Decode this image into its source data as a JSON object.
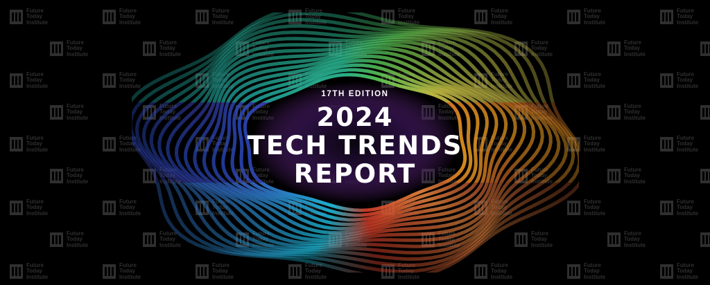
{
  "banner": {
    "edition": "17TH EDITION",
    "year": "2024",
    "title_line1": "TECH TRENDS",
    "title_line2": "REPORT"
  },
  "watermark": {
    "brand_text": "Future\nToday\nInstitute",
    "logo_icon": "fti-logo-icon"
  },
  "colors": {
    "background": "#000000",
    "watermark": "#8a8a8a",
    "title": "#ffffff",
    "teal": "#1fa3a0",
    "green": "#5fd35a",
    "yellow": "#d9d24a",
    "orange": "#f0a020",
    "red": "#d8243a",
    "magenta": "#b0289a",
    "purple": "#4a2a90",
    "blue": "#3a5fd0",
    "cyan": "#20c8e8"
  }
}
